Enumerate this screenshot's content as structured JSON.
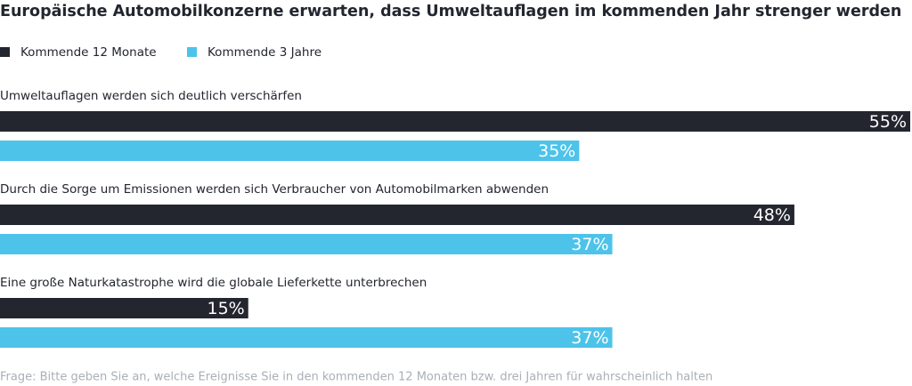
{
  "chart_data": {
    "type": "hbar",
    "title": "Europäische Automobilkonzerne erwarten, dass Umweltauflagen im kommenden Jahr strenger werden",
    "categories": [
      "Umweltauflagen werden sich deutlich verschärfen",
      "Durch die Sorge um Emissionen werden sich Verbraucher von Automobilmarken abwenden",
      "Eine große Naturkatastrophe wird die globale Lieferkette unterbrechen"
    ],
    "series": [
      {
        "name": "Kommende 12 Monate",
        "color": "#23262f",
        "values": [
          55,
          48,
          15
        ],
        "value_labels": [
          "55%",
          "48%",
          "15%"
        ]
      },
      {
        "name": "Kommende 3 Jahre",
        "color": "#4dc3ea",
        "values": [
          35,
          37,
          37
        ],
        "value_labels": [
          "35%",
          "37%",
          "37%"
        ]
      }
    ],
    "footnote": "Frage: Bitte geben Sie an, welche Ereignisse Sie in den kommenden 12 Monaten bzw. drei Jahren für wahrscheinlich halten"
  }
}
